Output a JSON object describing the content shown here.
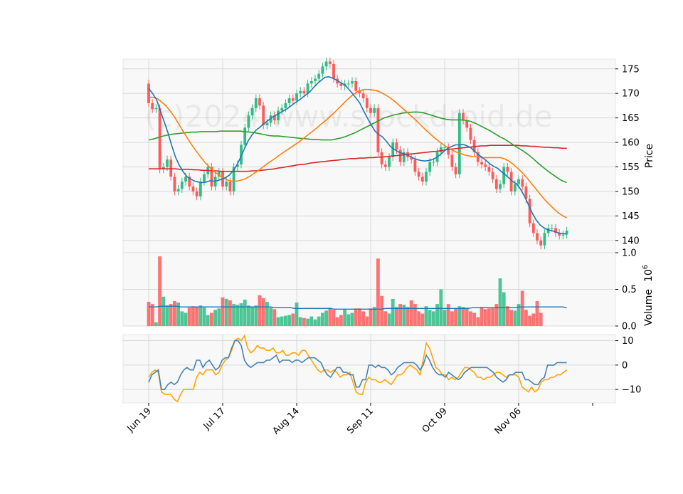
{
  "watermark": "(c)2024 www.stockdroid.de",
  "colors": {
    "up": "#2ebd85",
    "down": "#ff5a5a",
    "sma_fast": "#1f77b4",
    "sma_mid": "#ff7f0e",
    "sma_slow": "#2ca02c",
    "sma_long": "#d62728",
    "vol_ma": "#1f77b4",
    "osc_main": "#4682b4",
    "osc_signal": "#ffa500",
    "panel_bg": "#f8f8f8",
    "grid": "#d8d8d8"
  },
  "chart_data": [
    {
      "type": "candlestick",
      "panel": "price",
      "ylabel": "Price",
      "ylim": [
        137.5,
        177
      ],
      "yticks": [
        140,
        145,
        150,
        155,
        160,
        165,
        170,
        175
      ],
      "x_tick_labels": [
        "Jun 19",
        "Jul 17",
        "Aug 14",
        "Sep 11",
        "Oct 09",
        "Nov 06"
      ],
      "x_tick_indices": [
        0,
        20,
        40,
        60,
        80,
        100
      ],
      "close": [
        168,
        166.8,
        167,
        154.5,
        155,
        156.5,
        153,
        150,
        150.5,
        152,
        153,
        151,
        150,
        149,
        152,
        153.5,
        155,
        151,
        153,
        154,
        151,
        152,
        150,
        155,
        155.5,
        159.5,
        163,
        165.5,
        167,
        169,
        167.5,
        163.5,
        164,
        165.5,
        164.5,
        166.5,
        167,
        168,
        169,
        168.5,
        170,
        170.5,
        170,
        172,
        172.5,
        173,
        174,
        175.5,
        176.5,
        176,
        173,
        172,
        171.5,
        172,
        172,
        172.5,
        170.5,
        170,
        169,
        167,
        166,
        167,
        158,
        155.5,
        155,
        157,
        160,
        158.5,
        156,
        158,
        157,
        156.5,
        154,
        153,
        152,
        154,
        156,
        156,
        158,
        159,
        159,
        157.5,
        155,
        153.5,
        166,
        164.5,
        163,
        160.5,
        158,
        156,
        155.5,
        155,
        154,
        152.5,
        150.5,
        151.5,
        155,
        154,
        150,
        151.5,
        152.5,
        151,
        148.5,
        143.5,
        141.5,
        140,
        139,
        141.5,
        142.5,
        142.5,
        141.5,
        141,
        141.2,
        142
      ],
      "sma_fast": [
        171,
        170,
        168.8,
        166.5,
        164.3,
        162,
        159.4,
        157,
        155.3,
        154,
        153,
        152.5,
        152.1,
        151.9,
        151.8,
        151.9,
        152.2,
        152.1,
        152.2,
        152.5,
        152.8,
        153.3,
        154.2,
        155.4,
        157,
        158.8,
        160.4,
        161.6,
        162.5,
        163.1,
        163.8,
        164.4,
        165,
        165.5,
        165.9,
        166.4,
        166.8,
        167.4,
        168,
        168.5,
        169.1,
        169.7,
        170.3,
        171.2,
        172,
        172.7,
        173.3,
        173.4,
        173.1,
        172.7,
        172.2,
        171.8,
        171,
        170.1,
        169.1,
        168.1,
        166.5,
        165,
        163.6,
        162.3,
        161.6,
        161.1,
        160.2,
        159.2,
        158.6,
        158.1,
        157.8,
        157.6,
        157.2,
        156.8,
        156.5,
        156.3,
        156.2,
        156.3,
        156.5,
        156.9,
        157.5,
        158.2,
        158.8,
        159.2,
        159.5,
        159.5,
        159.6,
        159.3,
        158.9,
        158.2,
        157.5,
        156.9,
        156.3,
        155.6,
        155.1,
        154.7,
        154,
        153.4,
        152.7,
        152,
        151.5,
        150.4,
        149,
        147.3,
        145.6,
        144.2,
        143.2,
        142.6,
        142.2,
        142,
        141.8,
        141.5,
        141.4,
        141.3
      ],
      "sma_mid": [
        169.2,
        169.2,
        168.9,
        168.2,
        167.4,
        166.3,
        165,
        163.5,
        162,
        160.6,
        159.2,
        158,
        156.8,
        155.7,
        154.8,
        154,
        153.3,
        152.7,
        152.3,
        152.1,
        152.1,
        152.3,
        152.6,
        153.1,
        153.7,
        154.3,
        155,
        155.7,
        156.3,
        156.9,
        157.6,
        158.2,
        158.8,
        159.4,
        160,
        160.7,
        161.4,
        162.1,
        162.8,
        163.6,
        164.3,
        165.1,
        165.9,
        166.8,
        167.7,
        168.6,
        169.4,
        170.1,
        170.6,
        170.8,
        170.8,
        170.7,
        170.5,
        170.1,
        169.6,
        169,
        168.3,
        167.5,
        166.7,
        165.9,
        165.1,
        164.3,
        163.4,
        162.5,
        161.7,
        160.9,
        160.2,
        159.5,
        158.9,
        158.4,
        158,
        157.7,
        157.4,
        157.2,
        157.1,
        157,
        156.9,
        156.9,
        156.9,
        156.9,
        156.9,
        156.6,
        156.1,
        155.4,
        154.6,
        153.7,
        152.7,
        151.6,
        150.5,
        149.4,
        148.3,
        147.4,
        146.5,
        145.7,
        145.1,
        144.6
      ],
      "sma_slow": [
        160.5,
        160.7,
        161,
        161.3,
        161.5,
        161.7,
        161.8,
        161.9,
        162,
        162.1,
        162.1,
        162.2,
        162.2,
        162.2,
        162.2,
        162.3,
        162.3,
        162.3,
        162.3,
        162.3,
        162.2,
        162.1,
        162,
        161.8,
        161.6,
        161.4,
        161.3,
        161.3,
        161.2,
        161.1,
        161,
        160.9,
        160.8,
        160.7,
        160.6,
        160.6,
        160.5,
        160.5,
        160.5,
        160.7,
        160.9,
        161.2,
        161.6,
        162,
        162.5,
        163,
        163.5,
        164,
        164.5,
        165,
        165.3,
        165.6,
        165.8,
        166,
        166.1,
        166.2,
        166.2,
        166.1,
        165.8,
        165.5,
        165.2,
        164.9,
        164.7,
        164.6,
        164.6,
        164.6,
        164.5,
        164.3,
        163.9,
        163.4,
        162.9,
        162.4,
        161.8,
        161.2,
        160.7,
        160.1,
        159.4,
        158.8,
        158.2,
        157.5,
        156.7,
        155.8,
        155,
        154.2,
        153.5,
        152.8,
        152.2,
        151.8
      ],
      "sma_long": [
        154.6,
        154.6,
        154.6,
        154.6,
        154.6,
        154.6,
        154.6,
        154.5,
        154.5,
        154.5,
        154.4,
        154.4,
        154.3,
        154.3,
        154.2,
        154.2,
        154.1,
        154.1,
        154.1,
        154.1,
        154.1,
        154.1,
        154.1,
        154.2,
        154.2,
        154.3,
        154.4,
        154.5,
        154.6,
        154.8,
        154.9,
        155.1,
        155.2,
        155.4,
        155.5,
        155.6,
        155.8,
        155.9,
        156,
        156.1,
        156.2,
        156.3,
        156.4,
        156.5,
        156.6,
        156.7,
        156.7,
        156.8,
        156.8,
        156.9,
        156.9,
        157,
        157,
        157.1,
        157.2,
        157.3,
        157.4,
        157.5,
        157.6,
        157.7,
        157.8,
        157.9,
        158,
        158.1,
        158.2,
        158.3,
        158.5,
        158.6,
        158.7,
        158.8,
        158.9,
        159,
        159.1,
        159.2,
        159.3,
        159.3,
        159.4,
        159.4,
        159.4,
        159.4,
        159.4,
        159.4,
        159.4,
        159.3,
        159.3,
        159.2,
        159.2,
        159.1,
        159,
        159,
        158.9,
        158.9,
        158.8,
        158.8
      ]
    },
    {
      "type": "bar",
      "panel": "volume",
      "ylabel": "Volume",
      "ylabel_exponent": "10^6",
      "ylim": [
        0,
        1
      ],
      "yticks": [
        0.0,
        0.5,
        1.0
      ],
      "values": [
        0.33,
        0.3,
        0.05,
        0.95,
        0.4,
        0.28,
        0.3,
        0.34,
        0.32,
        0.2,
        0.18,
        0.25,
        0.27,
        0.26,
        0.28,
        0.25,
        0.15,
        0.18,
        0.22,
        0.24,
        0.39,
        0.37,
        0.35,
        0.3,
        0.29,
        0.31,
        0.36,
        0.28,
        0.26,
        0.28,
        0.42,
        0.38,
        0.33,
        0.25,
        0.23,
        0.12,
        0.13,
        0.14,
        0.15,
        0.17,
        0.32,
        0.12,
        0.11,
        0.1,
        0.13,
        0.09,
        0.13,
        0.18,
        0.21,
        0.25,
        0.22,
        0.12,
        0.15,
        0.23,
        0.16,
        0.18,
        0.24,
        0.24,
        0.2,
        0.13,
        0.24,
        0.26,
        0.92,
        0.41,
        0.2,
        0.17,
        0.37,
        0.26,
        0.3,
        0.29,
        0.26,
        0.35,
        0.3,
        0.2,
        0.17,
        0.27,
        0.22,
        0.2,
        0.3,
        0.5,
        0.22,
        0.3,
        0.2,
        0.24,
        0.27,
        0.26,
        0.25,
        0.2,
        0.18,
        0.12,
        0.26,
        0.23,
        0.24,
        0.25,
        0.3,
        0.65,
        0.46,
        0.27,
        0.22,
        0.21,
        0.3,
        0.48,
        0.22,
        0.14,
        0.17,
        0.34,
        0.18
      ],
      "ma": [
        0.26,
        0.26,
        0.26,
        0.27,
        0.27,
        0.27,
        0.27,
        0.27,
        0.26,
        0.26,
        0.26,
        0.26,
        0.26,
        0.26,
        0.26,
        0.26,
        0.26,
        0.26,
        0.26,
        0.26,
        0.26,
        0.26,
        0.26,
        0.26,
        0.26,
        0.26,
        0.26,
        0.26,
        0.26,
        0.26,
        0.26,
        0.26,
        0.25,
        0.25,
        0.25,
        0.25,
        0.25,
        0.24,
        0.24,
        0.24,
        0.24,
        0.24,
        0.24,
        0.24,
        0.24,
        0.24,
        0.24,
        0.23,
        0.23,
        0.23,
        0.23,
        0.23,
        0.23,
        0.23,
        0.23,
        0.23,
        0.23,
        0.23,
        0.23,
        0.23,
        0.24,
        0.24,
        0.24,
        0.24,
        0.24,
        0.24,
        0.24,
        0.24,
        0.24,
        0.24,
        0.24,
        0.24,
        0.24,
        0.24,
        0.24,
        0.24,
        0.24,
        0.24,
        0.24,
        0.24,
        0.24,
        0.24,
        0.25,
        0.25,
        0.25,
        0.25,
        0.25,
        0.25,
        0.25,
        0.25,
        0.25,
        0.25,
        0.25,
        0.25,
        0.26,
        0.26,
        0.26,
        0.26,
        0.26,
        0.26,
        0.26,
        0.26,
        0.26,
        0.26,
        0.26,
        0.26,
        0.25
      ]
    },
    {
      "type": "line",
      "panel": "oscillator",
      "ylim": [
        -15.5,
        12.5
      ],
      "yticks": [
        -10,
        0,
        10
      ],
      "series": [
        {
          "key": "main",
          "values": [
            -7,
            -4,
            -3,
            -2,
            -10,
            -10,
            -8,
            -7,
            -8,
            -7,
            -4,
            -2,
            -1,
            -2,
            -2,
            2,
            2,
            -1,
            1,
            2,
            0,
            -2,
            -1,
            2,
            3,
            3,
            7,
            10,
            10,
            8,
            2,
            0,
            -1,
            0,
            1,
            1,
            1,
            2,
            2,
            3,
            4,
            1,
            2,
            2,
            2,
            1,
            2,
            2,
            1,
            2,
            3,
            3,
            3,
            2,
            1,
            -2,
            -4,
            -5,
            -3,
            -1,
            -1,
            -3,
            -3,
            -4,
            -4,
            -9,
            -9,
            -6,
            -6,
            0,
            0,
            -1,
            0,
            -1,
            -1,
            -2,
            -4,
            -3,
            -1,
            0,
            1,
            1,
            1,
            1,
            0,
            -2,
            0,
            4,
            2,
            -1,
            -3,
            -4,
            -4,
            -5,
            -3,
            -4,
            -5,
            -6,
            -5,
            -3,
            -2,
            -1,
            -1,
            -1,
            -1,
            -1,
            -1,
            -2,
            -3,
            -5,
            -6,
            -7,
            -6,
            -4,
            -4,
            -3,
            -3,
            -3,
            -6,
            -6,
            -7,
            -8,
            -8,
            -6,
            -5,
            0,
            0,
            0,
            1,
            1,
            1,
            1
          ]
        },
        {
          "key": "signal",
          "values": [
            -5,
            -3,
            -2,
            -3,
            -11,
            -12,
            -12,
            -12,
            -14,
            -15,
            -12,
            -10,
            -10,
            -10,
            -10,
            -5,
            -3,
            -4,
            -2,
            -2,
            -2,
            -4,
            -3,
            0,
            2,
            3,
            6,
            10,
            11,
            10,
            12,
            7,
            5,
            6,
            8,
            7,
            7,
            6,
            6,
            7,
            5,
            5,
            6,
            4,
            4,
            5,
            5,
            4,
            6,
            6,
            4,
            2,
            0,
            -2,
            -3,
            -2,
            -2,
            -3,
            -2,
            -3,
            -5,
            -4,
            -4,
            -3,
            -7,
            -11,
            -12,
            -12,
            -7,
            -5,
            -6,
            -6,
            -7,
            -7,
            -6,
            -7,
            -8,
            -6,
            -4,
            -4,
            -3,
            -1,
            0,
            -1,
            -2,
            -4,
            2,
            9,
            7,
            3,
            -1,
            -2,
            -4,
            -4,
            -6,
            -5,
            -6,
            -5,
            -3,
            -1,
            -1,
            -2,
            -3,
            -5,
            -5,
            -6,
            -5,
            -5,
            -4,
            -3,
            -3,
            -4,
            -5,
            -4,
            -4,
            -4,
            -5,
            -9,
            -10,
            -11,
            -9,
            -11,
            -10,
            -7,
            -6,
            -6,
            -5,
            -5,
            -4,
            -4,
            -3,
            -2
          ]
        }
      ]
    }
  ]
}
